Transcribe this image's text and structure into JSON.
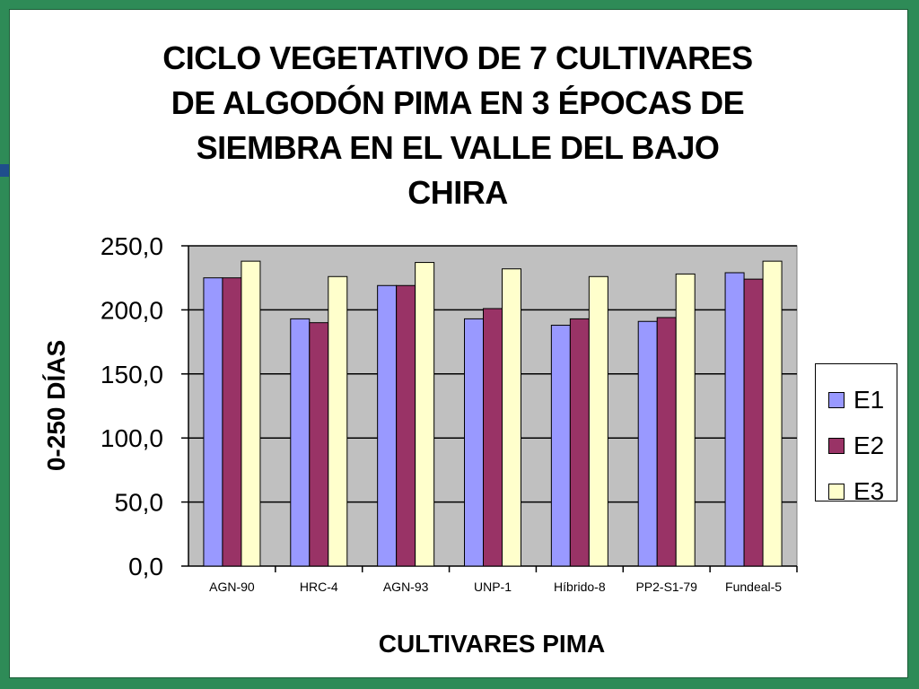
{
  "chart_data": {
    "type": "bar",
    "title_lines": [
      "CICLO VEGETATIVO DE 7 CULTIVARES",
      "DE ALGODÓN PIMA EN 3 ÉPOCAS DE",
      "SIEMBRA EN EL VALLE DEL BAJO",
      "CHIRA"
    ],
    "xlabel": "CULTIVARES  PIMA",
    "ylabel": "0-250 DÍAS",
    "ylim": [
      0,
      250
    ],
    "ytick_values": [
      0,
      50,
      100,
      150,
      200,
      250
    ],
    "ytick_labels": [
      "0,0",
      "50,0",
      "100,0",
      "150,0",
      "200,0",
      "250,0"
    ],
    "categories": [
      "AGN-90",
      "HRC-4",
      "AGN-93",
      "UNP-1",
      "Híbrido-8",
      "PP2-S1-79",
      "Fundeal-5"
    ],
    "series": [
      {
        "name": "E1",
        "color": "#9999ff",
        "values": [
          225,
          193,
          219,
          193,
          188,
          191,
          229
        ]
      },
      {
        "name": "E2",
        "color": "#993366",
        "values": [
          225,
          190,
          219,
          201,
          193,
          194,
          224
        ]
      },
      {
        "name": "E3",
        "color": "#ffffcc",
        "values": [
          238,
          226,
          237,
          232,
          226,
          228,
          238
        ]
      }
    ],
    "grid": true,
    "plot_background": "#c0c0c0",
    "legend_position": "right"
  }
}
